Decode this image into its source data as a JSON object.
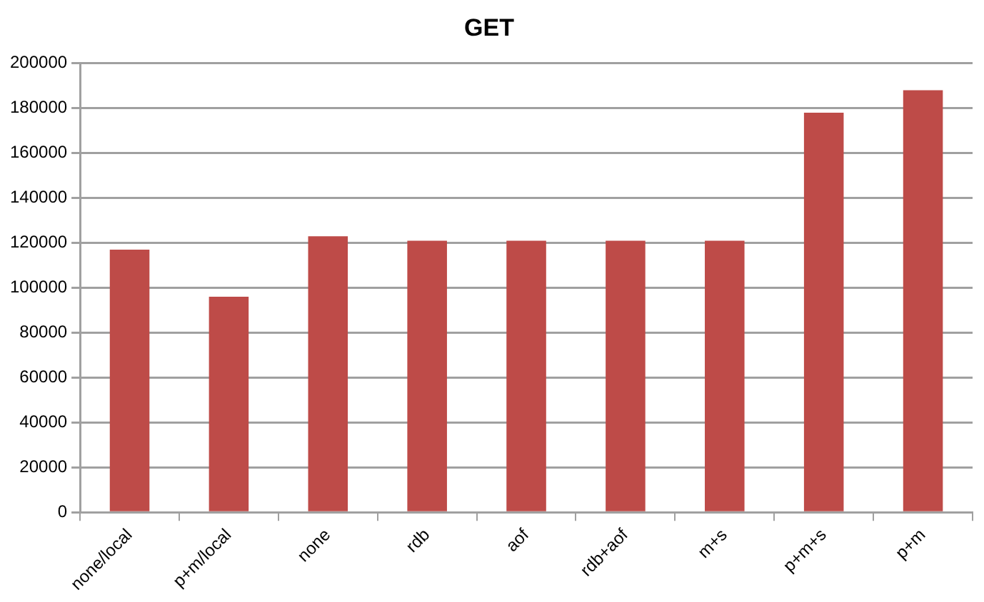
{
  "chart_data": {
    "type": "bar",
    "title": "GET",
    "categories": [
      "none/local",
      "p+m/local",
      "none",
      "rdb",
      "aof",
      "rdb+aof",
      "m+s",
      "p+m+s",
      "p+m"
    ],
    "values": [
      117000,
      96000,
      123000,
      121000,
      121000,
      121000,
      121000,
      178000,
      188000
    ],
    "color": "#be4b48",
    "ylim": [
      0,
      200000
    ],
    "yticks": [
      0,
      20000,
      40000,
      60000,
      80000,
      100000,
      120000,
      140000,
      160000,
      180000,
      200000
    ],
    "grid": "y",
    "legend": false
  }
}
